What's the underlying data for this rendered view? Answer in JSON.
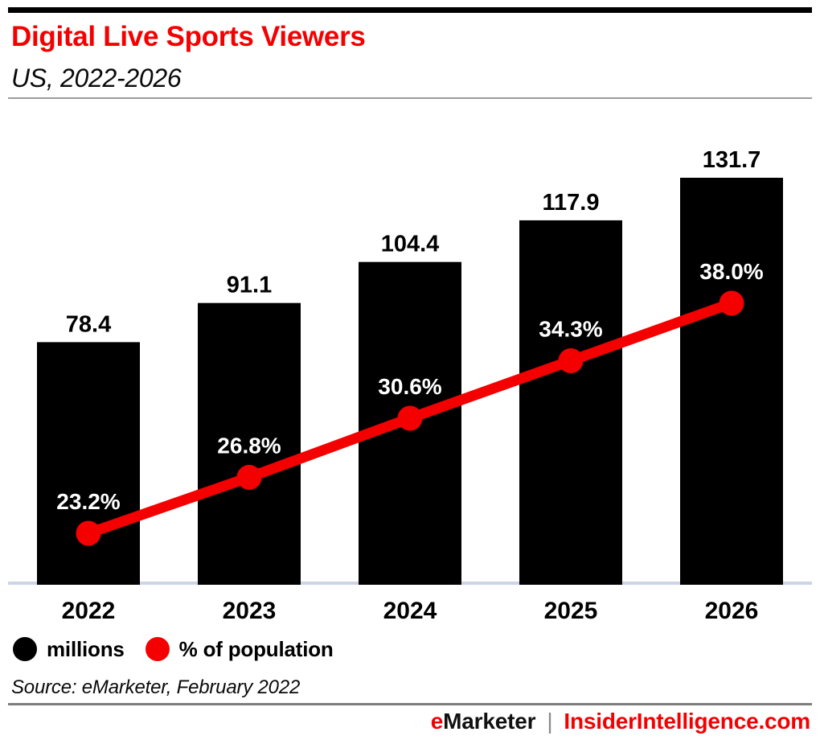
{
  "header": {
    "title": "Digital Live Sports Viewers",
    "subtitle": "US, 2022-2026"
  },
  "chart_data": {
    "type": "bar",
    "title": "Digital Live Sports Viewers",
    "subtitle": "US, 2022-2026",
    "categories": [
      "2022",
      "2023",
      "2024",
      "2025",
      "2026"
    ],
    "series": [
      {
        "name": "millions",
        "type": "bar",
        "color": "#000000",
        "values": [
          78.4,
          91.1,
          104.4,
          117.9,
          131.7
        ]
      },
      {
        "name": "% of population",
        "type": "line",
        "color": "#f40000",
        "values": [
          23.2,
          26.8,
          30.6,
          34.3,
          38.0
        ]
      }
    ],
    "value_labels": {
      "bar": [
        "78.4",
        "91.1",
        "104.4",
        "117.9",
        "131.7"
      ],
      "line": [
        "23.2%",
        "26.8%",
        "30.6%",
        "34.3%",
        "38.0%"
      ]
    },
    "xlabel": "",
    "ylabel": "",
    "grid": false,
    "y_axis_visible": false,
    "baseline_color": "#ccd4e8",
    "legend_position": "bottom-left"
  },
  "legend": {
    "items": [
      {
        "label": "millions",
        "color": "#000000"
      },
      {
        "label": "% of population",
        "color": "#f40000"
      }
    ]
  },
  "source": "Source: eMarketer, February 2022",
  "footer": {
    "brand_e": "e",
    "brand_rest": "Marketer",
    "separator": "|",
    "site": "InsiderIntelligence.com"
  },
  "colors": {
    "accent_red": "#f40000",
    "bar_black": "#000000",
    "baseline": "#ccd4e8",
    "divider_gray": "#7d7d7d",
    "header_line_gray": "#9c9c9c"
  }
}
